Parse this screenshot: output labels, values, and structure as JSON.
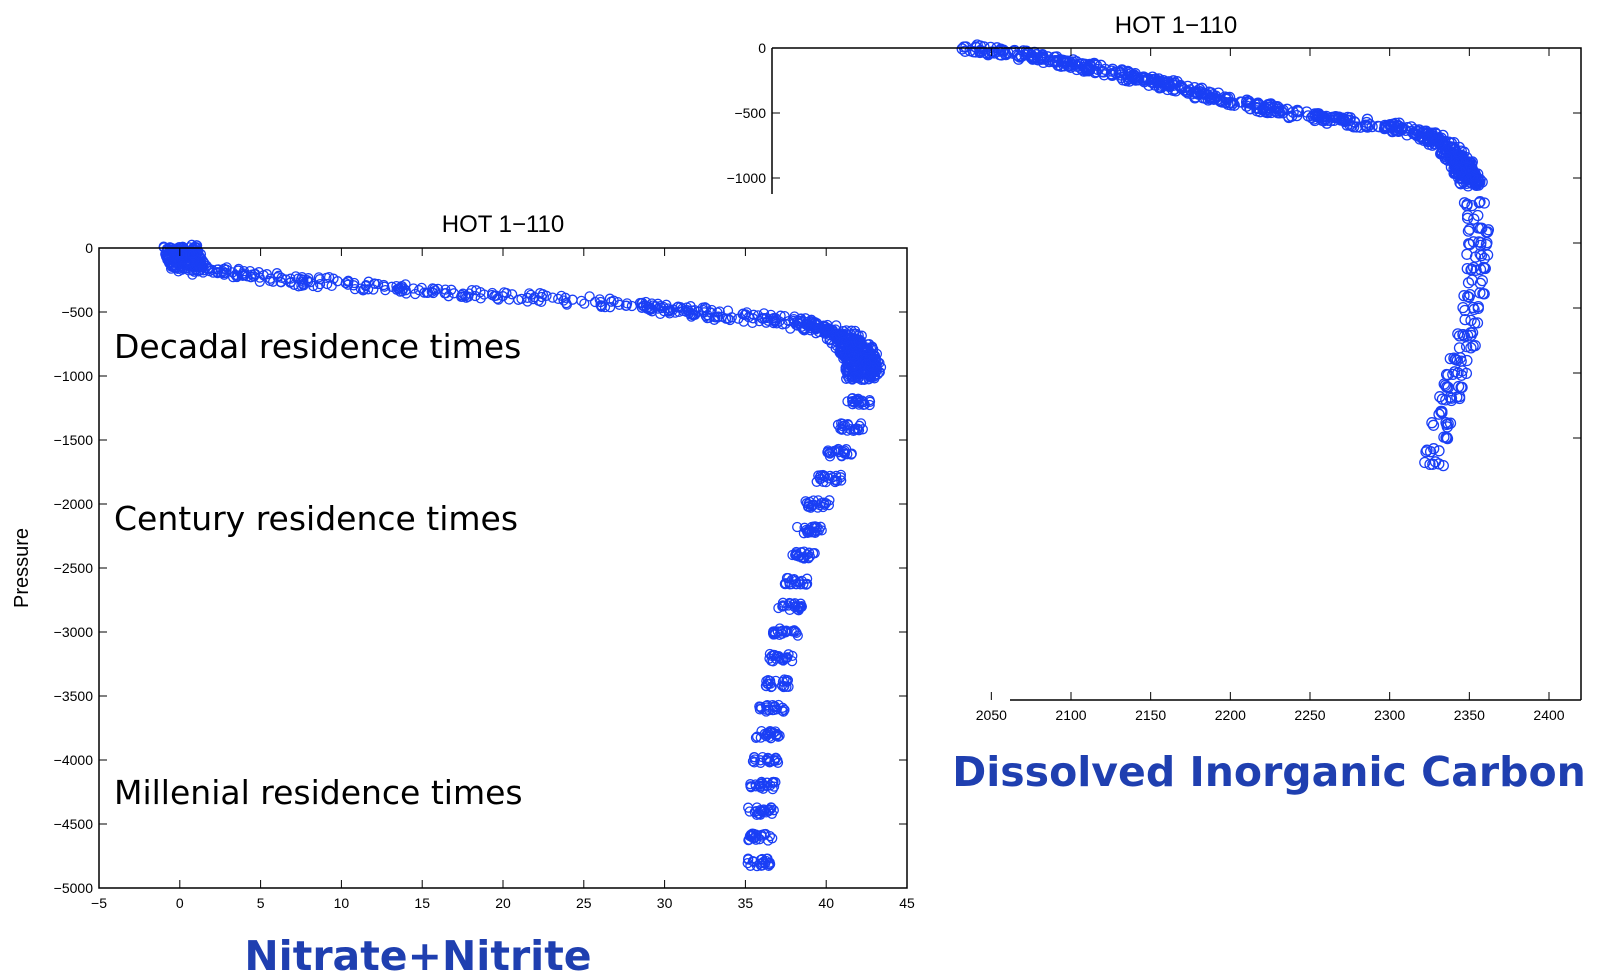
{
  "chart_data": [
    {
      "type": "scatter",
      "title": "HOT 1−110",
      "xlabel": "",
      "ylabel": "Pressure",
      "xlim": [
        -5,
        45
      ],
      "ylim": [
        -5000,
        0
      ],
      "xticks": [
        "−5",
        "0",
        "5",
        "10",
        "15",
        "20",
        "25",
        "30",
        "35",
        "40",
        "45"
      ],
      "xtick_values": [
        -5,
        0,
        5,
        10,
        15,
        20,
        25,
        30,
        35,
        40,
        45
      ],
      "yticks": [
        "0",
        "−500",
        "−1000",
        "−1500",
        "−2000",
        "−2500",
        "−3000",
        "−3500",
        "−4000",
        "−4500",
        "−5000"
      ],
      "ytick_values": [
        0,
        -500,
        -1000,
        -1500,
        -2000,
        -2500,
        -3000,
        -3500,
        -4000,
        -4500,
        -5000
      ],
      "marker": "circle",
      "color": "#1a3ff5",
      "grid": false,
      "profile": {
        "x": [
          0,
          0.5,
          3,
          8,
          15,
          22,
          28,
          33,
          37,
          39.5,
          41.5,
          42.3,
          42.2,
          41.5,
          40.5,
          39.5,
          38.5,
          37.8,
          37.2,
          36.5,
          36,
          35.8
        ],
        "y": [
          0,
          -150,
          -200,
          -260,
          -330,
          -390,
          -440,
          -520,
          -560,
          -620,
          -720,
          -900,
          -1100,
          -1400,
          -1700,
          -2000,
          -2400,
          -2800,
          -3200,
          -3700,
          -4300,
          -4800
        ]
      },
      "annotations": [
        "Decadal residence times",
        "Century residence times",
        "Millenial residence times"
      ],
      "caption": "Nitrate+Nitrite"
    },
    {
      "type": "scatter",
      "title": "HOT 1−110",
      "xlabel": "",
      "ylabel": "",
      "xlim": [
        2050,
        2400
      ],
      "ylim": [
        -3500,
        0
      ],
      "xticks": [
        "2050",
        "2100",
        "2150",
        "2200",
        "2250",
        "2300",
        "2350",
        "2400"
      ],
      "xtick_values": [
        2050,
        2100,
        2150,
        2200,
        2250,
        2300,
        2350,
        2400
      ],
      "yticks": [
        "0",
        "−500",
        "−1000"
      ],
      "ytick_values": [
        0,
        -500,
        -1000
      ],
      "marker": "circle",
      "color": "#1a3ff5",
      "grid": false,
      "profile": {
        "x": [
          2035,
          2070,
          2110,
          2150,
          2190,
          2230,
          2270,
          2300,
          2320,
          2335,
          2345,
          2352,
          2355,
          2355,
          2350,
          2345,
          2340,
          2335,
          2330,
          2328,
          2326
        ],
        "y": [
          0,
          -50,
          -150,
          -250,
          -380,
          -480,
          -560,
          -600,
          -650,
          -750,
          -900,
          -1050,
          -1300,
          -1700,
          -2100,
          -2400,
          -2600,
          -2800,
          -3000,
          -3150,
          -3230
        ]
      },
      "caption": "Dissolved Inorganic Carbon"
    }
  ]
}
